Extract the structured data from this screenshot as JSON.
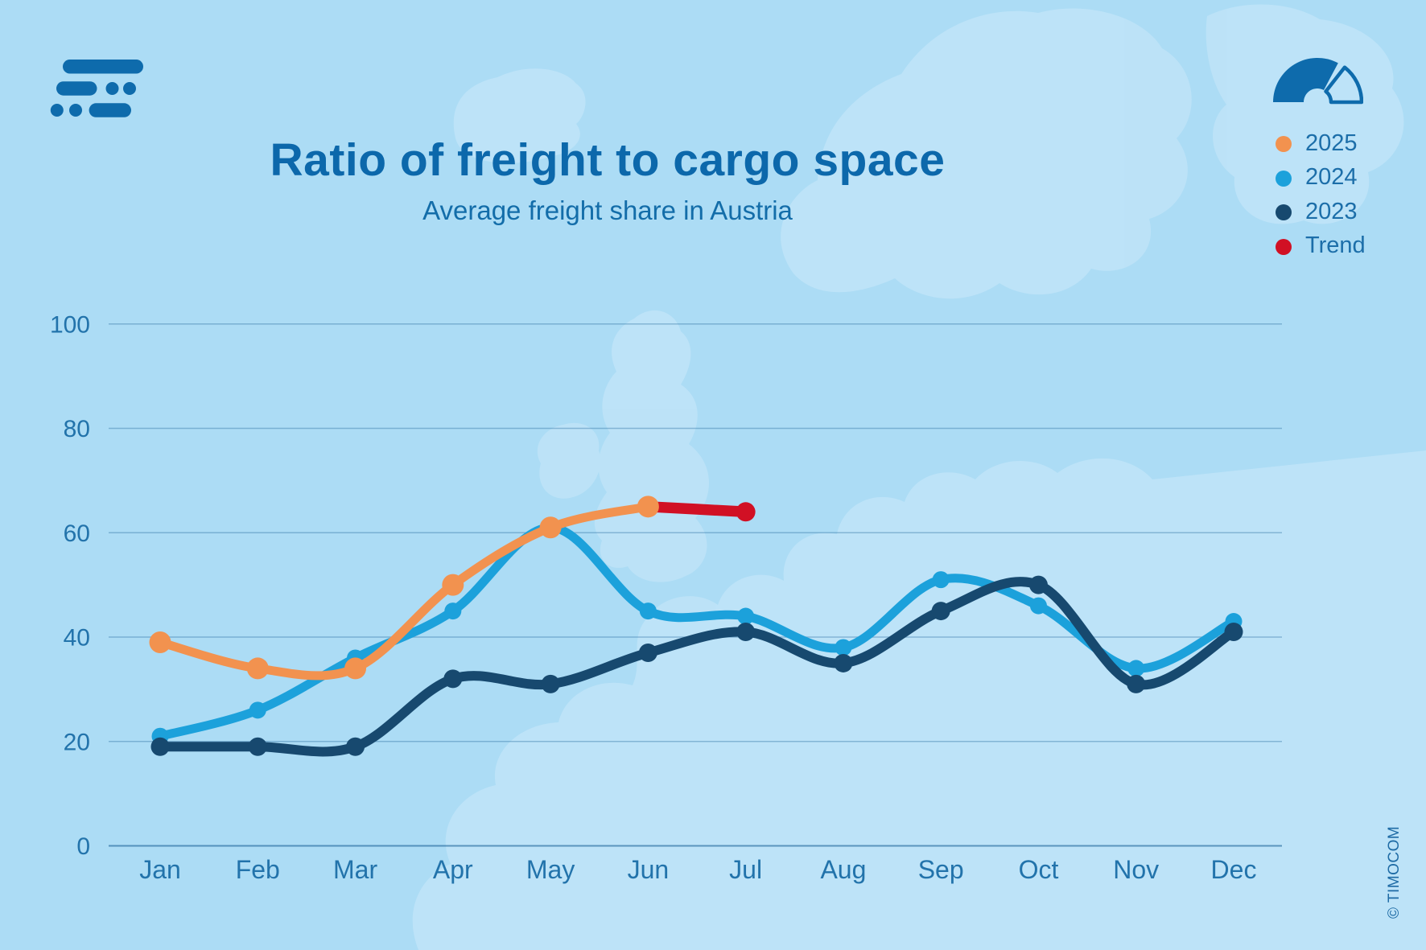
{
  "brand": {
    "logo_icon": "timocom-logo",
    "copyright": "© TIMOCOM"
  },
  "header": {
    "title": "Ratio of freight to cargo space",
    "subtitle": "Average freight share in Austria"
  },
  "legend": {
    "gauge_icon": "gauge-icon",
    "items": [
      {
        "label": "2025",
        "color": "#F2924F"
      },
      {
        "label": "2024",
        "color": "#1CA1DB"
      },
      {
        "label": "2023",
        "color": "#17496F"
      },
      {
        "label": "Trend",
        "color": "#D11024"
      }
    ]
  },
  "chart_data": {
    "type": "line",
    "title": "Ratio of freight to cargo space",
    "subtitle": "Average freight share in Austria",
    "categories": [
      "Jan",
      "Feb",
      "Mar",
      "Apr",
      "May",
      "Jun",
      "Jul",
      "Aug",
      "Sep",
      "Oct",
      "Nov",
      "Dec"
    ],
    "xlabel": "",
    "ylabel": "",
    "ylim": [
      0,
      100
    ],
    "yticks": [
      0,
      20,
      40,
      60,
      80,
      100
    ],
    "grid": true,
    "legend_position": "top-right",
    "series": [
      {
        "name": "2025",
        "color": "#F2924F",
        "values": [
          39,
          34,
          34,
          50,
          61,
          65,
          null,
          null,
          null,
          null,
          null,
          null
        ]
      },
      {
        "name": "2024",
        "color": "#1CA1DB",
        "values": [
          21,
          26,
          36,
          45,
          61,
          45,
          44,
          38,
          51,
          46,
          34,
          43
        ]
      },
      {
        "name": "2023",
        "color": "#17496F",
        "values": [
          19,
          19,
          19,
          32,
          31,
          37,
          41,
          35,
          45,
          50,
          31,
          41
        ]
      },
      {
        "name": "Trend",
        "color": "#D11024",
        "style": "projection",
        "values": [
          null,
          null,
          null,
          null,
          null,
          65,
          64,
          null,
          null,
          null,
          null,
          null
        ]
      }
    ]
  },
  "colors": {
    "background": "#ACDCF5",
    "map_land": "#BFE4F8",
    "brand_blue": "#0E6BAC",
    "axis_text": "#2273AB",
    "gridline": "rgba(23,95,150,0.35)"
  }
}
